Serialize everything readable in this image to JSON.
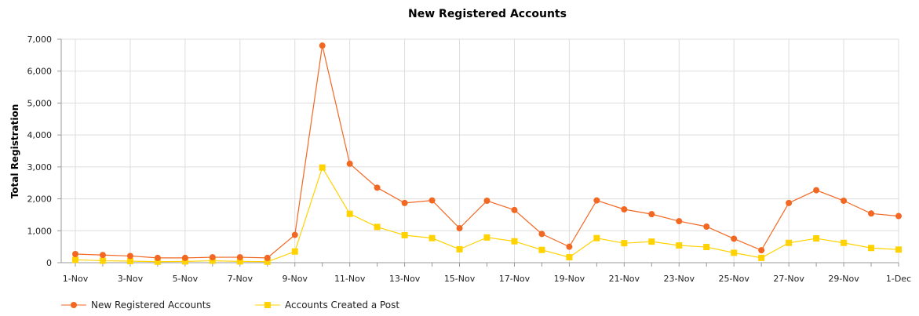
{
  "chart_data": {
    "type": "line",
    "title": "New Registered Accounts",
    "ylabel": "Total Registration",
    "xlabel": "",
    "ylim": [
      0,
      7000
    ],
    "yticks": [
      "0",
      "1,000",
      "2,000",
      "3,000",
      "4,000",
      "5,000",
      "6,000",
      "7,000"
    ],
    "ytick_values": [
      0,
      1000,
      2000,
      3000,
      4000,
      5000,
      6000,
      7000
    ],
    "categories": [
      "1-Nov",
      "2-Nov",
      "3-Nov",
      "4-Nov",
      "5-Nov",
      "6-Nov",
      "7-Nov",
      "8-Nov",
      "9-Nov",
      "10-Nov",
      "11-Nov",
      "12-Nov",
      "13-Nov",
      "14-Nov",
      "15-Nov",
      "16-Nov",
      "17-Nov",
      "18-Nov",
      "19-Nov",
      "20-Nov",
      "21-Nov",
      "22-Nov",
      "23-Nov",
      "24-Nov",
      "25-Nov",
      "26-Nov",
      "27-Nov",
      "28-Nov",
      "29-Nov",
      "30-Nov",
      "1-Dec"
    ],
    "xtick_labels": [
      "1-Nov",
      "3-Nov",
      "5-Nov",
      "7-Nov",
      "9-Nov",
      "11-Nov",
      "13-Nov",
      "15-Nov",
      "17-Nov",
      "19-Nov",
      "21-Nov",
      "23-Nov",
      "25-Nov",
      "27-Nov",
      "29-Nov",
      "1-Dec"
    ],
    "grid": true,
    "legend_position": "bottom-left",
    "series": [
      {
        "name": "New Registered Accounts",
        "color": "#F26722",
        "marker": "circle",
        "values": [
          270,
          240,
          210,
          150,
          150,
          170,
          170,
          150,
          870,
          6800,
          3100,
          2350,
          1870,
          1950,
          1080,
          1940,
          1650,
          900,
          500,
          1950,
          1670,
          1520,
          1300,
          1130,
          750,
          390,
          1870,
          2270,
          1940,
          1540,
          1460
        ]
      },
      {
        "name": "Accounts Created a Post",
        "color": "#FFD200",
        "marker": "square",
        "values": [
          90,
          60,
          50,
          30,
          40,
          60,
          40,
          30,
          350,
          2980,
          1530,
          1120,
          860,
          770,
          420,
          790,
          670,
          400,
          170,
          770,
          610,
          660,
          540,
          490,
          310,
          150,
          620,
          760,
          620,
          460,
          410
        ]
      }
    ]
  }
}
